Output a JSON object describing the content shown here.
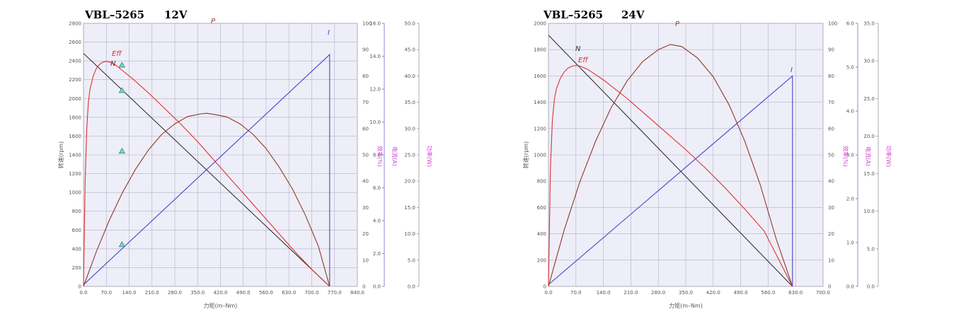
{
  "chart_data": [
    {
      "type": "line",
      "title_model": "VBL–5265",
      "title_voltage": "12V",
      "xlabel": "力矩(m–Nm)",
      "ylabel": "转速(rpm)",
      "y2label": "效率(%)",
      "y3label": "电流(A)",
      "y4label": "功率(W)",
      "xlim": [
        0,
        840
      ],
      "x_ticks": [
        "0.0",
        "70.0",
        "140.0",
        "210.0",
        "280.0",
        "350.0",
        "420.0",
        "490.0",
        "560.0",
        "630.0",
        "700.0",
        "770.0",
        "840.0"
      ],
      "ylim": [
        0,
        2800
      ],
      "y_ticks": [
        "0",
        "200",
        "400",
        "600",
        "800",
        "1000",
        "1200",
        "1400",
        "1600",
        "1800",
        "2000",
        "2200",
        "2400",
        "2600",
        "2800"
      ],
      "y2lim": [
        0,
        100
      ],
      "y2_ticks": [
        "0",
        "10",
        "20",
        "30",
        "40",
        "50",
        "60",
        "70",
        "80",
        "90",
        "100"
      ],
      "y3lim": [
        0,
        16
      ],
      "y3_ticks": [
        "0.0",
        "2.0",
        "4.0",
        "6.0",
        "8.0",
        "10.0",
        "12.0",
        "14.0",
        "16.0"
      ],
      "y4lim": [
        0,
        50
      ],
      "y4_ticks": [
        "0.0",
        "5.0",
        "10.0",
        "15.0",
        "20.0",
        "25.0",
        "30.0",
        "35.0",
        "40.0",
        "45.0",
        "50.0"
      ],
      "series": [
        {
          "name": "N",
          "axis": "y",
          "color": "#333333",
          "x": [
            0,
            755
          ],
          "values": [
            2480,
            0
          ]
        },
        {
          "name": "I",
          "axis": "y3",
          "color": "#4444cc",
          "x": [
            0,
            755,
            755
          ],
          "values": [
            0.1,
            14.1,
            0
          ]
        },
        {
          "name": "P",
          "axis": "y4",
          "color": "#8b3a2a",
          "x": [
            0,
            40,
            80,
            120,
            160,
            200,
            240,
            280,
            320,
            360,
            377,
            400,
            440,
            480,
            520,
            560,
            600,
            640,
            680,
            720,
            755
          ],
          "values": [
            0,
            6.7,
            12.7,
            17.9,
            22.3,
            26.0,
            28.9,
            30.9,
            32.3,
            32.8,
            32.9,
            32.7,
            32.2,
            30.9,
            28.9,
            26.2,
            22.7,
            18.6,
            13.6,
            7.7,
            0
          ]
        },
        {
          "name": "Eff",
          "axis": "y2",
          "color": "#e03030",
          "x": [
            0,
            5,
            10,
            15,
            20,
            30,
            40,
            50,
            60,
            70,
            80,
            100,
            120,
            150,
            200,
            250,
            300,
            350,
            400,
            450,
            500,
            550,
            600,
            650,
            700,
            755
          ],
          "values": [
            0,
            40,
            60,
            70,
            75,
            80,
            83,
            84.5,
            85.3,
            85.5,
            85.3,
            84,
            82,
            79,
            73.5,
            67.5,
            61.5,
            55,
            48,
            41,
            34,
            27,
            20,
            13,
            6.5,
            0
          ]
        }
      ],
      "markers": [
        {
          "x": 118,
          "y": 2355
        },
        {
          "x": 118,
          "y": 2085
        },
        {
          "x": 118,
          "y": 1440
        },
        {
          "x": 118,
          "y": 445
        }
      ]
    },
    {
      "type": "line",
      "title_model": "VBL–5265",
      "title_voltage": "24V",
      "xlabel": "力矩(m–Nm)",
      "ylabel": "转速(rpm)",
      "y2label": "效率(%)",
      "y3label": "电流(A)",
      "y4label": "功率(W)",
      "xlim": [
        0,
        700
      ],
      "x_ticks": [
        "0.0",
        "70.0",
        "140.0",
        "210.0",
        "280.0",
        "350.0",
        "420.0",
        "490.0",
        "560.0",
        "630.0",
        "700.0"
      ],
      "ylim": [
        0,
        2000
      ],
      "y_ticks": [
        "0",
        "200",
        "400",
        "600",
        "800",
        "1000",
        "1200",
        "1400",
        "1600",
        "1800",
        "2000"
      ],
      "y2lim": [
        0,
        100
      ],
      "y2_ticks": [
        "0",
        "10",
        "20",
        "30",
        "40",
        "50",
        "60",
        "70",
        "80",
        "90",
        "100"
      ],
      "y3lim": [
        0,
        6
      ],
      "y3_ticks": [
        "0.0",
        "1.0",
        "2.0",
        "3.0",
        "4.0",
        "5.0",
        "6.0"
      ],
      "y4lim": [
        0,
        35
      ],
      "y4_ticks": [
        "0.0",
        "5.0",
        "10.0",
        "15.0",
        "20.0",
        "25.0",
        "30.0",
        "35.0"
      ],
      "series": [
        {
          "name": "N",
          "axis": "y",
          "color": "#333333",
          "x": [
            0,
            622
          ],
          "values": [
            1910,
            0
          ]
        },
        {
          "name": "I",
          "axis": "y3",
          "color": "#4444cc",
          "x": [
            0,
            622,
            622
          ],
          "values": [
            0.04,
            4.8,
            0
          ]
        },
        {
          "name": "P",
          "axis": "y4",
          "color": "#8b3a2a",
          "x": [
            0,
            40,
            80,
            120,
            160,
            200,
            240,
            280,
            311,
            340,
            380,
            420,
            460,
            500,
            540,
            580,
            622
          ],
          "values": [
            0,
            7.5,
            13.9,
            19.3,
            23.8,
            27.3,
            29.9,
            31.5,
            32.2,
            31.9,
            30.4,
            27.9,
            24.2,
            19.4,
            13.5,
            6.4,
            0
          ]
        },
        {
          "name": "Eff",
          "axis": "y2",
          "color": "#e03030",
          "x": [
            0,
            5,
            10,
            15,
            20,
            30,
            40,
            50,
            60,
            70,
            80,
            100,
            140,
            200,
            250,
            300,
            350,
            400,
            450,
            500,
            550,
            622
          ],
          "values": [
            0,
            45,
            63,
            71,
            75,
            79,
            81.5,
            83,
            83.7,
            84,
            83.8,
            82.5,
            78.5,
            71.5,
            65,
            58.5,
            52,
            45,
            37.5,
            29.5,
            21,
            0
          ]
        }
      ],
      "markers": []
    }
  ]
}
